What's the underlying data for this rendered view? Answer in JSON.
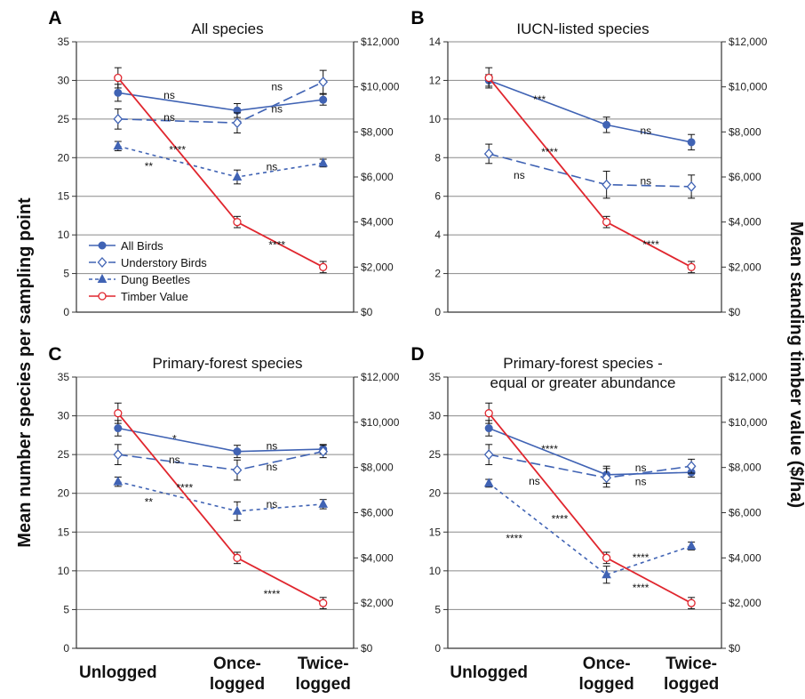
{
  "figure": {
    "y_left_label": "Mean number species per sampling point",
    "y_right_label": "Mean standing timber value ($/ha)",
    "x_categories": [
      [
        "Unlogged"
      ],
      [
        "Once-",
        "logged"
      ],
      [
        "Twice-",
        "logged"
      ]
    ]
  },
  "legend": [
    {
      "key": "all_birds",
      "label": "All Birds"
    },
    {
      "key": "understory_birds",
      "label": "Understory Birds"
    },
    {
      "key": "dung_beetles",
      "label": "Dung Beetles"
    },
    {
      "key": "timber_value",
      "label": "Timber Value"
    }
  ],
  "colors": {
    "birds": "#4063b4",
    "timber": "#e0262e",
    "grid": "#8a8a8a",
    "axis": "#333333"
  },
  "chart_data": [
    {
      "type": "line",
      "panel_label": "A",
      "title": [
        "All species"
      ],
      "categories": [
        "Unlogged",
        "Once-logged",
        "Twice-logged"
      ],
      "y_left_ticks": [
        "0",
        "5",
        "10",
        "15",
        "20",
        "25",
        "30",
        "35"
      ],
      "y_right_ticks": [
        "$0",
        "$2,000",
        "$4,000",
        "$6,000",
        "$8,000",
        "$10,000",
        "$12,000"
      ],
      "ylim_left": [
        0,
        35
      ],
      "ylim_right": [
        0,
        12000
      ],
      "grid": true,
      "legend_position": "bottom-left",
      "series": [
        {
          "key": "all_birds",
          "name": "All Birds",
          "axis": "left",
          "values": [
            28.4,
            26.1,
            27.5
          ],
          "errors": [
            1.1,
            0.9,
            0.7
          ]
        },
        {
          "key": "understory_birds",
          "name": "Understory Birds",
          "axis": "left",
          "values": [
            25.0,
            24.5,
            29.8
          ],
          "errors": [
            1.3,
            1.3,
            1.5
          ]
        },
        {
          "key": "dung_beetles",
          "name": "Dung Beetles",
          "axis": "left",
          "values": [
            21.5,
            17.5,
            19.3
          ],
          "errors": [
            0.6,
            0.9,
            0.5
          ]
        },
        {
          "key": "timber_value",
          "name": "Timber Value",
          "axis": "right",
          "values": [
            10400,
            4000,
            2000
          ],
          "errors": [
            450,
            250,
            250
          ]
        }
      ],
      "annotations": [
        {
          "text": "ns",
          "x": 0.5,
          "y": 28.1
        },
        {
          "text": "ns",
          "x": 0.5,
          "y": 25.2
        },
        {
          "text": "****",
          "x": 0.58,
          "y": 21.0
        },
        {
          "text": "**",
          "x": 0.3,
          "y": 18.9
        },
        {
          "text": "ns",
          "x": 1.55,
          "y": 29.2
        },
        {
          "text": "ns",
          "x": 1.55,
          "y": 26.3
        },
        {
          "text": "ns",
          "x": 1.5,
          "y": 18.8
        },
        {
          "text": "****",
          "x": 1.55,
          "y": 8.7
        }
      ]
    },
    {
      "type": "line",
      "panel_label": "B",
      "title": [
        "IUCN-listed species"
      ],
      "categories": [
        "Unlogged",
        "Once-logged",
        "Twice-logged"
      ],
      "y_left_ticks": [
        "0",
        "2",
        "4",
        "6",
        "8",
        "10",
        "12",
        "14"
      ],
      "y_right_ticks": [
        "$0",
        "$2,000",
        "$4,000",
        "$6,000",
        "$8,000",
        "$10,000",
        "$12,000"
      ],
      "ylim_left": [
        0,
        14
      ],
      "ylim_right": [
        0,
        12000
      ],
      "grid": true,
      "legend_position": "none",
      "series": [
        {
          "key": "all_birds",
          "name": "All Birds",
          "axis": "left",
          "values": [
            12.0,
            9.7,
            8.8
          ],
          "errors": [
            0.3,
            0.4,
            0.4
          ]
        },
        {
          "key": "understory_birds",
          "name": "Understory Birds",
          "axis": "left",
          "values": [
            8.2,
            6.6,
            6.5
          ],
          "errors": [
            0.5,
            0.7,
            0.6
          ]
        },
        {
          "key": "timber_value",
          "name": "Timber Value",
          "axis": "right",
          "values": [
            10400,
            4000,
            2000
          ],
          "errors": [
            450,
            250,
            250
          ]
        }
      ],
      "annotations": [
        {
          "text": "***",
          "x": 0.5,
          "y": 11.0
        },
        {
          "text": "****",
          "x": 0.6,
          "y": 8.3
        },
        {
          "text": "ns",
          "x": 0.3,
          "y": 7.1
        },
        {
          "text": "ns",
          "x": 1.55,
          "y": 9.4
        },
        {
          "text": "ns",
          "x": 1.55,
          "y": 6.8
        },
        {
          "text": "****",
          "x": 1.6,
          "y": 3.5
        }
      ]
    },
    {
      "type": "line",
      "panel_label": "C",
      "title": [
        "Primary-forest species"
      ],
      "categories": [
        "Unlogged",
        "Once-logged",
        "Twice-logged"
      ],
      "y_left_ticks": [
        "0",
        "5",
        "10",
        "15",
        "20",
        "25",
        "30",
        "35"
      ],
      "y_right_ticks": [
        "$0",
        "$2,000",
        "$4,000",
        "$6,000",
        "$8,000",
        "$10,000",
        "$12,000"
      ],
      "ylim_left": [
        0,
        35
      ],
      "ylim_right": [
        0,
        12000
      ],
      "grid": true,
      "legend_position": "none",
      "series": [
        {
          "key": "all_birds",
          "name": "All Birds",
          "axis": "left",
          "values": [
            28.4,
            25.4,
            25.7
          ],
          "errors": [
            1.0,
            0.8,
            0.6
          ]
        },
        {
          "key": "understory_birds",
          "name": "Understory Birds",
          "axis": "left",
          "values": [
            25.0,
            23.0,
            25.4
          ],
          "errors": [
            1.3,
            1.3,
            0.8
          ]
        },
        {
          "key": "dung_beetles",
          "name": "Dung Beetles",
          "axis": "left",
          "values": [
            21.5,
            17.7,
            18.6
          ],
          "errors": [
            0.6,
            1.2,
            0.6
          ]
        },
        {
          "key": "timber_value",
          "name": "Timber Value",
          "axis": "right",
          "values": [
            10400,
            4000,
            2000
          ],
          "errors": [
            450,
            250,
            250
          ]
        }
      ],
      "annotations": [
        {
          "text": "*",
          "x": 0.55,
          "y": 27.0
        },
        {
          "text": "ns",
          "x": 0.55,
          "y": 24.3
        },
        {
          "text": "****",
          "x": 0.65,
          "y": 20.7
        },
        {
          "text": "**",
          "x": 0.3,
          "y": 18.9
        },
        {
          "text": "ns",
          "x": 1.5,
          "y": 26.1
        },
        {
          "text": "ns",
          "x": 1.5,
          "y": 23.4
        },
        {
          "text": "ns",
          "x": 1.5,
          "y": 18.6
        },
        {
          "text": "****",
          "x": 1.5,
          "y": 7.0
        }
      ]
    },
    {
      "type": "line",
      "panel_label": "D",
      "title": [
        "Primary-forest species -",
        "equal or greater abundance"
      ],
      "categories": [
        "Unlogged",
        "Once-logged",
        "Twice-logged"
      ],
      "y_left_ticks": [
        "0",
        "5",
        "10",
        "15",
        "20",
        "25",
        "30",
        "35"
      ],
      "y_right_ticks": [
        "$0",
        "$2,000",
        "$4,000",
        "$6,000",
        "$8,000",
        "$10,000",
        "$12,000"
      ],
      "ylim_left": [
        0,
        35
      ],
      "ylim_right": [
        0,
        12000
      ],
      "grid": true,
      "legend_position": "none",
      "series": [
        {
          "key": "all_birds",
          "name": "All Birds",
          "axis": "left",
          "values": [
            28.4,
            22.4,
            22.7
          ],
          "errors": [
            1.0,
            1.1,
            0.6
          ]
        },
        {
          "key": "understory_birds",
          "name": "Understory Birds",
          "axis": "left",
          "values": [
            25.0,
            22.0,
            23.5
          ],
          "errors": [
            1.3,
            1.2,
            0.9
          ]
        },
        {
          "key": "dung_beetles",
          "name": "Dung Beetles",
          "axis": "left",
          "values": [
            21.3,
            9.5,
            13.2
          ],
          "errors": [
            0.5,
            1.1,
            0.5
          ]
        },
        {
          "key": "timber_value",
          "name": "Timber Value",
          "axis": "right",
          "values": [
            10400,
            4000,
            2000
          ],
          "errors": [
            450,
            250,
            250
          ]
        }
      ],
      "annotations": [
        {
          "text": "****",
          "x": 0.6,
          "y": 25.7
        },
        {
          "text": "ns",
          "x": 0.45,
          "y": 21.6
        },
        {
          "text": "****",
          "x": 0.7,
          "y": 16.7
        },
        {
          "text": "****",
          "x": 0.25,
          "y": 14.2
        },
        {
          "text": "ns",
          "x": 1.5,
          "y": 23.3
        },
        {
          "text": "ns",
          "x": 1.5,
          "y": 21.5
        },
        {
          "text": "****",
          "x": 1.5,
          "y": 11.7
        },
        {
          "text": "****",
          "x": 1.5,
          "y": 7.8
        }
      ]
    }
  ]
}
